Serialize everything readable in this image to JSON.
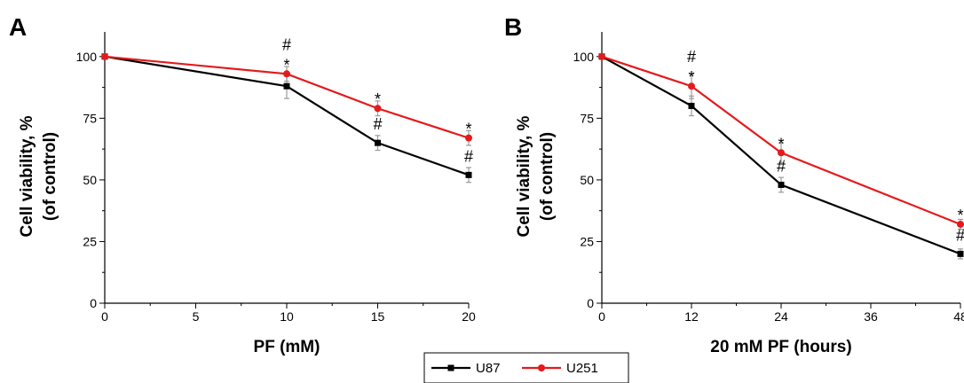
{
  "chart_data": [
    {
      "panel": "A",
      "type": "line",
      "xlabel": "PF (mM)",
      "ylabel": [
        "Cell viability, %",
        "(of control)"
      ],
      "xlim": [
        0,
        20
      ],
      "ylim": [
        0,
        110
      ],
      "xticks": [
        0,
        5,
        10,
        15,
        20
      ],
      "yticks": [
        0,
        25,
        50,
        75,
        100
      ],
      "grid": false,
      "series": [
        {
          "name": "U87",
          "color": "#000000",
          "x": [
            0,
            10,
            15,
            20
          ],
          "y": [
            100,
            88,
            65,
            52
          ],
          "err": [
            0,
            5,
            3,
            3
          ]
        },
        {
          "name": "U251",
          "color": "#e41a1c",
          "x": [
            0,
            10,
            15,
            20
          ],
          "y": [
            100,
            93,
            79,
            67
          ],
          "err": [
            0,
            3,
            3,
            3
          ]
        }
      ],
      "annotations": [
        {
          "x": 10,
          "y": 93,
          "series": "U251",
          "marks": [
            "#",
            "*"
          ]
        },
        {
          "x": 15,
          "y": 79,
          "series": "U251",
          "marks": [
            "*"
          ]
        },
        {
          "x": 15,
          "y": 65,
          "series": "U87",
          "marks": [
            "#"
          ]
        },
        {
          "x": 20,
          "y": 67,
          "series": "U251",
          "marks": [
            "*"
          ]
        },
        {
          "x": 20,
          "y": 52,
          "series": "U87",
          "marks": [
            "#"
          ]
        }
      ]
    },
    {
      "panel": "B",
      "type": "line",
      "xlabel": "20 mM PF (hours)",
      "ylabel": [
        "Cell viability, %",
        "(of control)"
      ],
      "xlim": [
        0,
        48
      ],
      "ylim": [
        0,
        110
      ],
      "xticks": [
        0,
        12,
        24,
        36,
        48
      ],
      "yticks": [
        0,
        25,
        50,
        75,
        100
      ],
      "grid": false,
      "series": [
        {
          "name": "U87",
          "color": "#000000",
          "x": [
            0,
            12,
            24,
            48
          ],
          "y": [
            100,
            80,
            48,
            20
          ],
          "err": [
            0,
            4,
            3,
            2
          ]
        },
        {
          "name": "U251",
          "color": "#e41a1c",
          "x": [
            0,
            12,
            24,
            48
          ],
          "y": [
            100,
            88,
            61,
            32
          ],
          "err": [
            0,
            5,
            4,
            2
          ]
        }
      ],
      "annotations": [
        {
          "x": 12,
          "y": 88,
          "series": "U251",
          "marks": [
            "#",
            "*"
          ]
        },
        {
          "x": 24,
          "y": 61,
          "series": "U251",
          "marks": [
            "*"
          ]
        },
        {
          "x": 24,
          "y": 48,
          "series": "U87",
          "marks": [
            "#"
          ]
        },
        {
          "x": 48,
          "y": 32,
          "series": "U251",
          "marks": [
            "*"
          ]
        },
        {
          "x": 48,
          "y": 20,
          "series": "U87",
          "marks": [
            "#"
          ]
        }
      ]
    }
  ],
  "legend": {
    "placement": "bottom-center",
    "entries": [
      {
        "name": "U87",
        "color": "#000000"
      },
      {
        "name": "U251",
        "color": "#e41a1c"
      }
    ]
  }
}
